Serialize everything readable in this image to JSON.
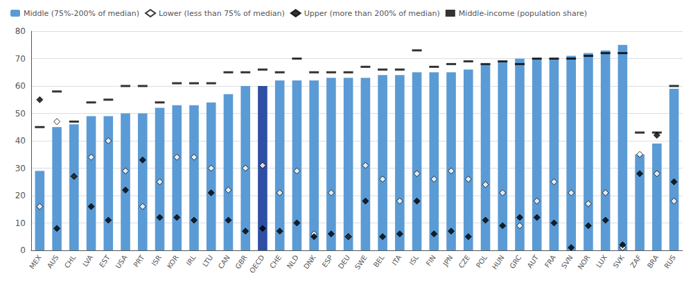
{
  "chart_data": {
    "type": "bar",
    "categories": [
      "MEX",
      "AUS",
      "CHL",
      "LVA",
      "EST",
      "USA",
      "PRT",
      "ISR",
      "KOR",
      "IRL",
      "LTU",
      "CAN",
      "GBR",
      "OECD",
      "CHE",
      "NLD",
      "DNK",
      "ESP",
      "DEU",
      "SWE",
      "BEL",
      "ITA",
      "ISL",
      "FIN",
      "JPN",
      "CZE",
      "POL",
      "HUN",
      "GRC",
      "AUT",
      "FRA",
      "SVN",
      "NOR",
      "LUX",
      "SVK",
      "ZAF",
      "BRA",
      "RUS"
    ],
    "series": [
      {
        "name": "Middle (75%-200% of median)",
        "type": "bar",
        "colors": [
          "#5B9BD5",
          "#5B9BD5",
          "#5B9BD5",
          "#5B9BD5",
          "#5B9BD5",
          "#5B9BD5",
          "#5B9BD5",
          "#5B9BD5",
          "#5B9BD5",
          "#5B9BD5",
          "#5B9BD5",
          "#5B9BD5",
          "#5B9BD5",
          "#2E4FA3",
          "#5B9BD5",
          "#5B9BD5",
          "#5B9BD5",
          "#5B9BD5",
          "#5B9BD5",
          "#5B9BD5",
          "#5B9BD5",
          "#5B9BD5",
          "#5B9BD5",
          "#5B9BD5",
          "#5B9BD5",
          "#5B9BD5",
          "#5B9BD5",
          "#5B9BD5",
          "#5B9BD5",
          "#5B9BD5",
          "#5B9BD5",
          "#5B9BD5",
          "#5B9BD5",
          "#5B9BD5",
          "#5B9BD5",
          "#5B9BD5",
          "#5B9BD5",
          "#5B9BD5"
        ],
        "values": [
          29,
          45,
          46,
          49,
          49,
          50,
          50,
          52,
          53,
          53,
          54,
          57,
          60,
          60,
          62,
          62,
          62,
          63,
          63,
          63,
          64,
          64,
          65,
          65,
          65,
          66,
          68,
          69,
          70,
          70,
          70,
          71,
          72,
          73,
          75,
          35,
          39,
          59
        ]
      },
      {
        "name": "Lower (less than 75% of median)",
        "type": "scatter",
        "marker": "diamond",
        "color": "#ffffff",
        "values": [
          16,
          47,
          27,
          34,
          40,
          29,
          16,
          25,
          34,
          34,
          30,
          22,
          30,
          31,
          21,
          29,
          6,
          21,
          5,
          31,
          26,
          18,
          28,
          26,
          29,
          26,
          24,
          21,
          9,
          18,
          25,
          21,
          17,
          21,
          1,
          35,
          28,
          18
        ]
      },
      {
        "name": "Upper (more than 200% of median)",
        "type": "scatter",
        "marker": "diamond",
        "color": "#000000",
        "values": [
          55,
          8,
          27,
          16,
          11,
          22,
          33,
          12,
          12,
          11,
          21,
          11,
          7,
          8,
          7,
          10,
          5,
          6,
          5,
          18,
          5,
          6,
          18,
          6,
          7,
          5,
          11,
          9,
          12,
          12,
          10,
          1,
          9,
          11,
          2,
          28,
          42,
          25
        ]
      },
      {
        "name": "Middle-income (population share)",
        "type": "scatter",
        "marker": "dash",
        "color": "#000000",
        "values": [
          45,
          58,
          47,
          54,
          55,
          60,
          60,
          54,
          61,
          61,
          61,
          65,
          65,
          66,
          65,
          70,
          65,
          65,
          65,
          67,
          66,
          66,
          73,
          67,
          68,
          69,
          68,
          69,
          68,
          70,
          70,
          70,
          71,
          72,
          72,
          43,
          43,
          60
        ]
      }
    ],
    "ylim": [
      0,
      80
    ],
    "yticks": [
      0,
      10,
      20,
      30,
      40,
      50,
      60,
      70,
      80
    ],
    "grid": true,
    "legend": "upper left"
  }
}
